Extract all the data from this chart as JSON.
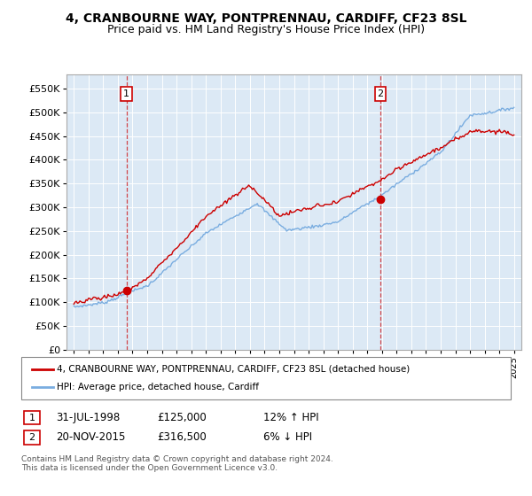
{
  "title": "4, CRANBOURNE WAY, PONTPRENNAU, CARDIFF, CF23 8SL",
  "subtitle": "Price paid vs. HM Land Registry's House Price Index (HPI)",
  "ylabel_ticks": [
    0,
    50000,
    100000,
    150000,
    200000,
    250000,
    300000,
    350000,
    400000,
    450000,
    500000,
    550000
  ],
  "ylabel_labels": [
    "£0",
    "£50K",
    "£100K",
    "£150K",
    "£200K",
    "£250K",
    "£300K",
    "£350K",
    "£400K",
    "£450K",
    "£500K",
    "£550K"
  ],
  "xlim": [
    1994.5,
    2025.5
  ],
  "ylim": [
    0,
    580000
  ],
  "background_color": "#dce9f5",
  "grid_color": "#ffffff",
  "sale1_date": 1998.58,
  "sale1_price": 125000,
  "sale1_label": "1",
  "sale2_date": 2015.9,
  "sale2_price": 316500,
  "sale2_label": "2",
  "red_color": "#cc0000",
  "blue_color": "#7aade0",
  "legend_text1": "4, CRANBOURNE WAY, PONTPRENNAU, CARDIFF, CF23 8SL (detached house)",
  "legend_text2": "HPI: Average price, detached house, Cardiff",
  "ann1_box": "1",
  "ann1_date": "31-JUL-1998",
  "ann1_price": "£125,000",
  "ann1_hpi": "12% ↑ HPI",
  "ann2_box": "2",
  "ann2_date": "20-NOV-2015",
  "ann2_price": "£316,500",
  "ann2_hpi": "6% ↓ HPI",
  "footer": "Contains HM Land Registry data © Crown copyright and database right 2024.\nThis data is licensed under the Open Government Licence v3.0.",
  "title_fontsize": 10,
  "subtitle_fontsize": 9
}
